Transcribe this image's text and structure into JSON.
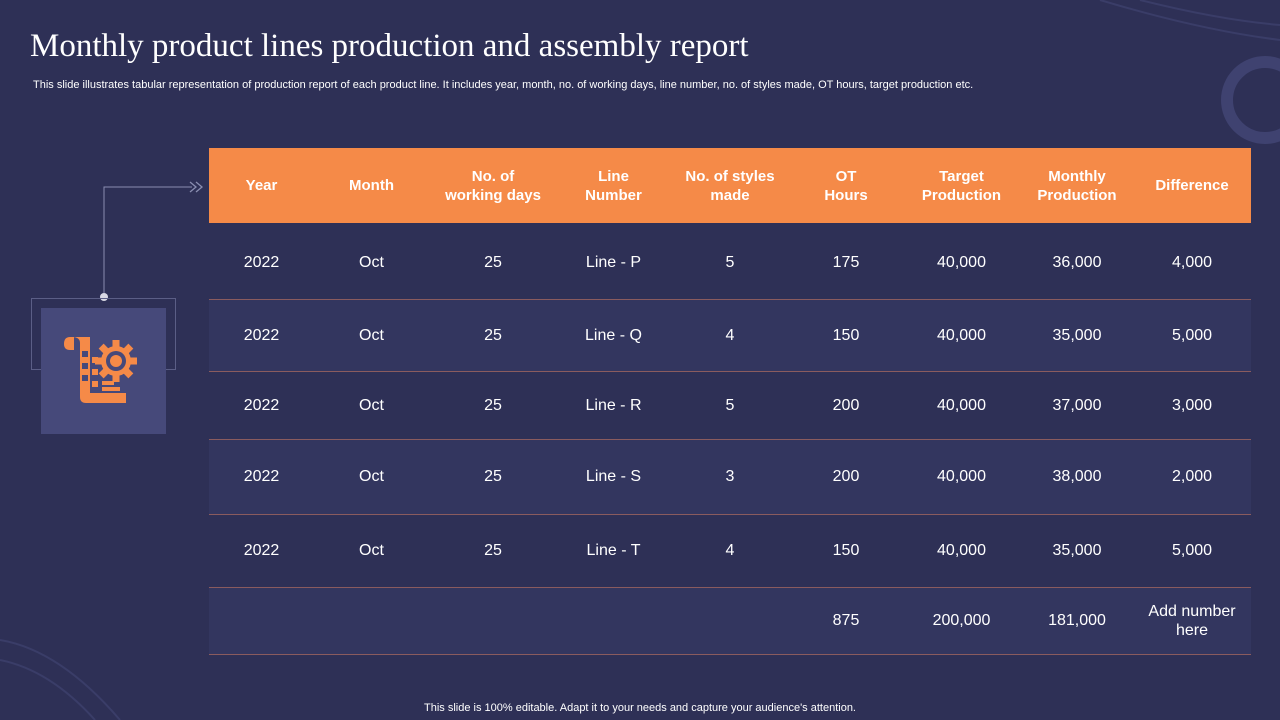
{
  "slide": {
    "title": "Monthly product lines production and assembly report",
    "subtitle": "This slide illustrates tabular representation of production report of each product line. It includes year, month, no. of working days, line number, no. of styles made, OT hours, target production etc.",
    "footer": "This slide is 100% editable. Adapt it to your needs and capture your audience's attention.",
    "icon": "production-report-gear-icon",
    "accent_color": "#f58a48",
    "background_color": "#2e3056"
  },
  "table": {
    "headers": [
      {
        "line1": "Year",
        "line2": ""
      },
      {
        "line1": "Month",
        "line2": ""
      },
      {
        "line1": "No. of",
        "line2": "working days"
      },
      {
        "line1": "Line",
        "line2": "Number"
      },
      {
        "line1": "No. of styles",
        "line2": "made"
      },
      {
        "line1": "OT",
        "line2": "Hours"
      },
      {
        "line1": "Target",
        "line2": "Production"
      },
      {
        "line1": "Monthly",
        "line2": "Production"
      },
      {
        "line1": "Difference",
        "line2": ""
      }
    ],
    "rows": [
      [
        "2022",
        "Oct",
        "25",
        "Line - P",
        "5",
        "175",
        "40,000",
        "36,000",
        "4,000"
      ],
      [
        "2022",
        "Oct",
        "25",
        "Line - Q",
        "4",
        "150",
        "40,000",
        "35,000",
        "5,000"
      ],
      [
        "2022",
        "Oct",
        "25",
        "Line - R",
        "5",
        "200",
        "40,000",
        "37,000",
        "3,000"
      ],
      [
        "2022",
        "Oct",
        "25",
        "Line - S",
        "3",
        "200",
        "40,000",
        "38,000",
        "2,000"
      ],
      [
        "2022",
        "Oct",
        "25",
        "Line - T",
        "4",
        "150",
        "40,000",
        "35,000",
        "5,000"
      ]
    ],
    "totals": {
      "ot_hours": "875",
      "target_production": "200,000",
      "monthly_production": "181,000",
      "difference_line1": "Add number",
      "difference_line2": "here"
    }
  }
}
